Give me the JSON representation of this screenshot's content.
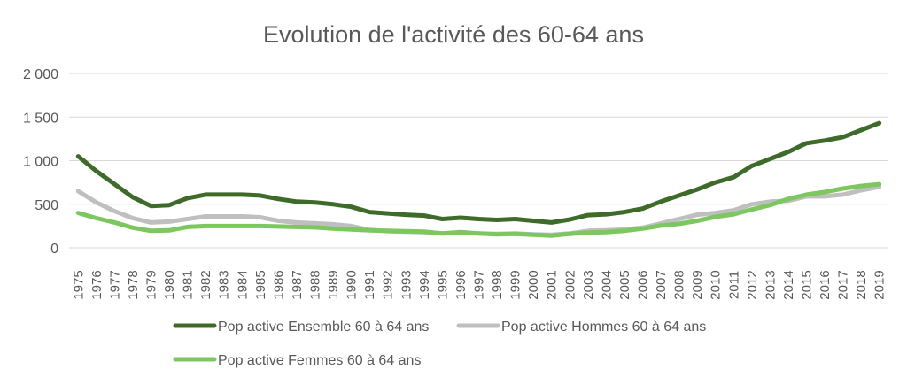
{
  "chart_data": {
    "type": "line",
    "title": "Evolution de l'activité des 60-64 ans",
    "xlabel": "",
    "ylabel": "",
    "ylim": [
      0,
      2000
    ],
    "y_ticks": [
      {
        "value": 0,
        "label": "0"
      },
      {
        "value": 500,
        "label": "500"
      },
      {
        "value": 1000,
        "label": "1 000"
      },
      {
        "value": 1500,
        "label": "1 500"
      },
      {
        "value": 2000,
        "label": "2 000"
      }
    ],
    "grid": true,
    "legend_position": "bottom",
    "categories": [
      "1975",
      "1976",
      "1977",
      "1978",
      "1979",
      "1980",
      "1981",
      "1982",
      "1983",
      "1984",
      "1985",
      "1986",
      "1987",
      "1988",
      "1989",
      "1990",
      "1991",
      "1992",
      "1993",
      "1994",
      "1995",
      "1996",
      "1997",
      "1998",
      "1999",
      "2000",
      "2001",
      "2002",
      "2003",
      "2004",
      "2005",
      "2006",
      "2007",
      "2008",
      "2009",
      "2010",
      "2011",
      "2012",
      "2013",
      "2014",
      "2015",
      "2016",
      "2017",
      "2018",
      "2019"
    ],
    "series": [
      {
        "name": "Pop active Ensemble 60 à 64 ans",
        "color": "#3f6b2a",
        "values": [
          1050,
          880,
          730,
          580,
          480,
          490,
          570,
          610,
          610,
          610,
          600,
          560,
          530,
          520,
          500,
          470,
          410,
          395,
          380,
          370,
          330,
          345,
          330,
          320,
          330,
          310,
          290,
          325,
          375,
          385,
          410,
          450,
          530,
          600,
          670,
          750,
          810,
          940,
          1020,
          1100,
          1200,
          1230,
          1270,
          1350,
          1430
        ]
      },
      {
        "name": "Pop active Hommes 60 à 64 ans",
        "color": "#bfbfbf",
        "values": [
          650,
          520,
          420,
          340,
          290,
          300,
          330,
          360,
          360,
          360,
          350,
          310,
          290,
          280,
          270,
          250,
          205,
          190,
          185,
          180,
          165,
          170,
          165,
          160,
          165,
          155,
          150,
          165,
          195,
          200,
          210,
          230,
          280,
          330,
          380,
          400,
          430,
          500,
          530,
          540,
          590,
          590,
          610,
          660,
          700
        ]
      },
      {
        "name": "Pop active Femmes 60 à 64 ans",
        "color": "#7dc760",
        "values": [
          400,
          340,
          290,
          230,
          195,
          200,
          240,
          250,
          250,
          250,
          250,
          245,
          240,
          235,
          220,
          210,
          200,
          195,
          190,
          185,
          165,
          180,
          165,
          155,
          160,
          150,
          140,
          160,
          175,
          180,
          195,
          220,
          255,
          275,
          310,
          355,
          385,
          440,
          490,
          560,
          610,
          640,
          680,
          710,
          730
        ]
      }
    ]
  }
}
